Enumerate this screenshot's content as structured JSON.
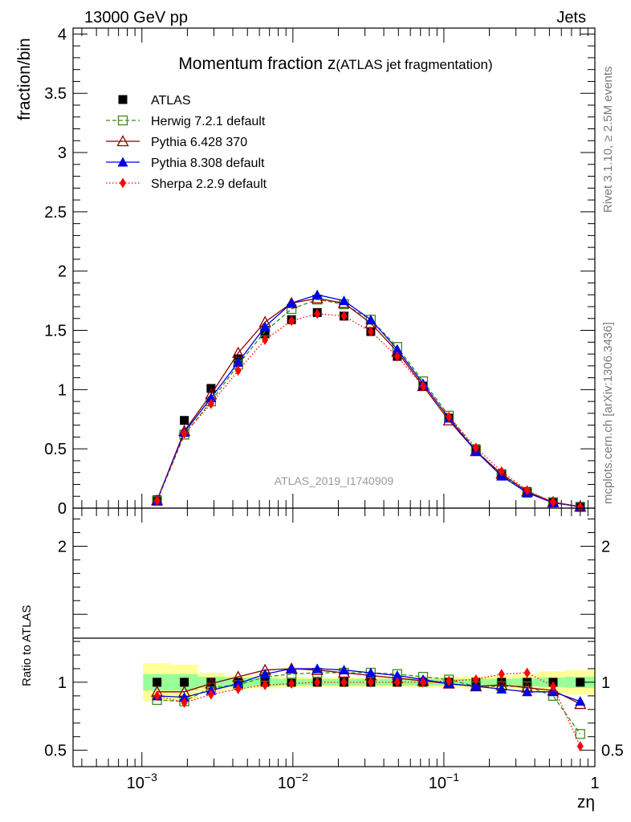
{
  "header": {
    "energy_label": "13000 GeV pp",
    "process_label": "Jets"
  },
  "side": {
    "rivet_label": "Rivet 3.1.10, ≥ 2.5M events",
    "mcplots_label": "mcplots.cern.ch [arXiv:1306.3436]"
  },
  "colors": {
    "atlas": "#000000",
    "herwig": "#3a8a1a",
    "pythia6": "#8b0000",
    "pythia8": "#0000e6",
    "sherpa": "#ff0000",
    "band_inner": "#99ff99",
    "band_outer": "#ffff99"
  },
  "chart_data": {
    "type": "line",
    "title_main": "Momentum fraction z",
    "title_sub": "(ATLAS jet fragmentation)",
    "watermark": "ATLAS_2019_I1740909",
    "xlabel": "zη",
    "x_scale": "log",
    "xlim": [
      0.00035,
      1.0
    ],
    "xticks": [
      {
        "value": 0.001,
        "base": "10",
        "exp": "−3"
      },
      {
        "value": 0.01,
        "base": "10",
        "exp": "−2"
      },
      {
        "value": 0.1,
        "base": "10",
        "exp": "−1"
      },
      {
        "value": 1.0,
        "base": "1",
        "exp": ""
      }
    ],
    "main": {
      "ylabel": "fraction/bin",
      "ylim": [
        0,
        4.05
      ],
      "yticks": [
        {
          "value": 0,
          "label": "0"
        },
        {
          "value": 0.5,
          "label": "0.5"
        },
        {
          "value": 1,
          "label": "1"
        },
        {
          "value": 1.5,
          "label": "1.5"
        },
        {
          "value": 2,
          "label": "2"
        },
        {
          "value": 2.5,
          "label": "2.5"
        },
        {
          "value": 3,
          "label": "3"
        },
        {
          "value": 3.5,
          "label": "3.5"
        },
        {
          "value": 4,
          "label": "4"
        }
      ]
    },
    "ratio": {
      "ylabel": "Ratio to ATLAS",
      "ylim": [
        0.38,
        2.28
      ],
      "yticks": [
        {
          "value": 0.5,
          "label": "0.5"
        },
        {
          "value": 1,
          "label": "1"
        },
        {
          "value": 2,
          "label": "2"
        }
      ]
    },
    "x": [
      0.00126,
      0.00191,
      0.00287,
      0.00434,
      0.00654,
      0.00979,
      0.0145,
      0.0218,
      0.0328,
      0.0491,
      0.0728,
      0.108,
      0.163,
      0.241,
      0.356,
      0.529,
      0.8
    ],
    "band": {
      "x_edges": [
        0.00102,
        0.00155,
        0.00235,
        0.00353,
        0.00535,
        0.00804,
        0.0121,
        0.018,
        0.0268,
        0.04,
        0.0597,
        0.0885,
        0.131,
        0.196,
        0.289,
        0.424,
        0.634,
        1.0
      ],
      "inner": [
        0.06,
        0.06,
        0.04,
        0.035,
        0.03,
        0.025,
        0.025,
        0.025,
        0.025,
        0.025,
        0.025,
        0.025,
        0.025,
        0.025,
        0.03,
        0.035,
        0.04
      ],
      "outer": [
        0.14,
        0.13,
        0.07,
        0.05,
        0.045,
        0.04,
        0.035,
        0.035,
        0.035,
        0.035,
        0.04,
        0.04,
        0.045,
        0.05,
        0.06,
        0.08,
        0.09
      ]
    },
    "series": [
      {
        "key": "atlas",
        "name": "ATLAS",
        "marker": "square-filled",
        "line": "none",
        "values": [
          0.07,
          0.74,
          1.01,
          1.26,
          1.47,
          1.59,
          1.65,
          1.62,
          1.49,
          1.28,
          1.03,
          0.76,
          0.5,
          0.29,
          0.14,
          0.05,
          0.015
        ],
        "ratio": [
          1,
          1,
          1,
          1,
          1,
          1,
          1,
          1,
          1,
          1,
          1,
          1,
          1,
          1,
          1,
          1,
          1
        ]
      },
      {
        "key": "herwig",
        "name": "Herwig 7.2.1 default",
        "marker": "square-open",
        "line": "dashed",
        "values": [
          0.06,
          0.62,
          0.9,
          1.21,
          1.49,
          1.68,
          1.76,
          1.72,
          1.59,
          1.36,
          1.07,
          0.78,
          0.49,
          0.28,
          0.13,
          0.05,
          0.01
        ],
        "ratio": [
          0.87,
          0.86,
          0.96,
          0.98,
          1.04,
          1.06,
          1.07,
          1.07,
          1.07,
          1.06,
          1.04,
          1.02,
          0.97,
          0.97,
          0.97,
          0.9,
          0.62
        ]
      },
      {
        "key": "pythia6",
        "name": "Pythia 6.428 370",
        "marker": "triangle-open",
        "line": "solid",
        "values": [
          0.065,
          0.65,
          0.96,
          1.31,
          1.57,
          1.73,
          1.77,
          1.73,
          1.56,
          1.32,
          1.03,
          0.74,
          0.48,
          0.29,
          0.14,
          0.05,
          0.012
        ],
        "ratio": [
          0.93,
          0.93,
          0.99,
          1.04,
          1.09,
          1.1,
          1.09,
          1.07,
          1.05,
          1.03,
          1.01,
          0.99,
          0.97,
          0.98,
          0.96,
          0.94,
          0.84
        ]
      },
      {
        "key": "pythia8",
        "name": "Pythia 8.308 default",
        "marker": "triangle-filled",
        "line": "solid",
        "values": [
          0.065,
          0.64,
          0.93,
          1.23,
          1.53,
          1.73,
          1.8,
          1.75,
          1.59,
          1.34,
          1.05,
          0.76,
          0.48,
          0.27,
          0.13,
          0.045,
          0.013
        ],
        "ratio": [
          0.9,
          0.89,
          0.94,
          0.99,
          1.06,
          1.1,
          1.1,
          1.09,
          1.07,
          1.05,
          1.02,
          0.99,
          0.97,
          0.95,
          0.93,
          0.93,
          0.86
        ]
      },
      {
        "key": "sherpa",
        "name": "Sherpa 2.2.9 default",
        "marker": "diamond-filled",
        "line": "dotted",
        "values": [
          0.063,
          0.63,
          0.88,
          1.16,
          1.42,
          1.58,
          1.64,
          1.62,
          1.49,
          1.28,
          1.03,
          0.77,
          0.51,
          0.31,
          0.15,
          0.05,
          0.008
        ],
        "ratio": [
          0.9,
          0.85,
          0.91,
          0.95,
          0.98,
          0.99,
          1.0,
          1.0,
          1.0,
          1.0,
          1.0,
          1.01,
          1.02,
          1.06,
          1.07,
          0.97,
          0.53
        ]
      }
    ]
  }
}
